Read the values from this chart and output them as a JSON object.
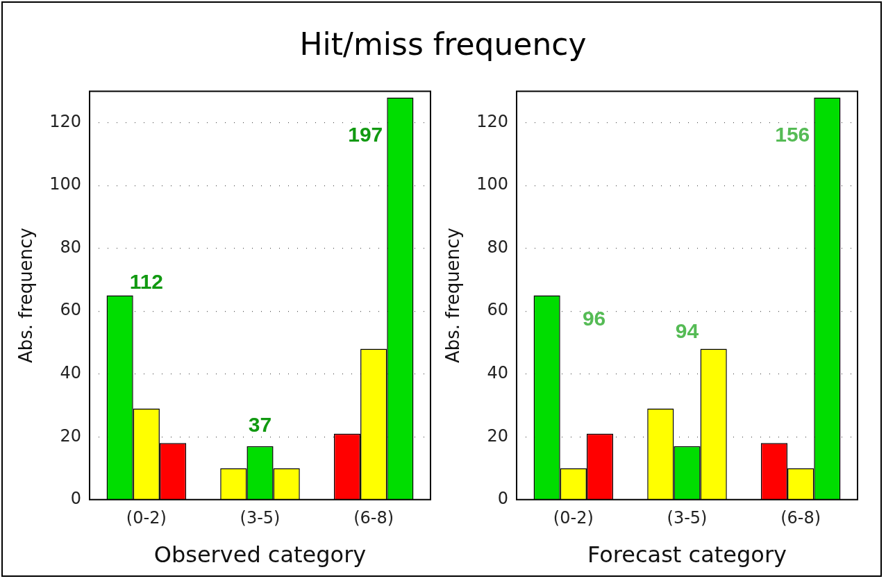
{
  "chart_data": [
    {
      "type": "bar",
      "title": "Hit/miss frequency",
      "xlabel": "Observed category",
      "ylabel": "Abs. frequency",
      "categories": [
        "(0-2)",
        "(3-5)",
        "(6-8)"
      ],
      "series": [
        {
          "colors": [
            "#00dd00",
            "#ffff00",
            "#ff0000"
          ],
          "values": [
            65,
            10,
            21
          ]
        },
        {
          "colors": [
            "#ffff00",
            "#00dd00",
            "#ffff00"
          ],
          "values": [
            29,
            17,
            48
          ]
        },
        {
          "colors": [
            "#ff0000",
            "#ffff00",
            "#00dd00"
          ],
          "values": [
            18,
            10,
            128
          ]
        }
      ],
      "ylim": [
        0,
        130
      ],
      "yticks": [
        0,
        20,
        40,
        60,
        80,
        100,
        120
      ],
      "grid": "y",
      "legend": false,
      "annotations": [
        "112",
        "37",
        "197"
      ]
    },
    {
      "type": "bar",
      "xlabel": "Forecast category",
      "ylabel": "Abs. frequency",
      "categories": [
        "(0-2)",
        "(3-5)",
        "(6-8)"
      ],
      "series": [
        {
          "colors": [
            "#00dd00",
            "#ffff00",
            "#ff0000"
          ],
          "values": [
            65,
            29,
            18
          ]
        },
        {
          "colors": [
            "#ffff00",
            "#00dd00",
            "#ffff00"
          ],
          "values": [
            10,
            17,
            10
          ]
        },
        {
          "colors": [
            "#ff0000",
            "#ffff00",
            "#00dd00"
          ],
          "values": [
            21,
            48,
            128
          ]
        }
      ],
      "ylim": [
        0,
        130
      ],
      "yticks": [
        0,
        20,
        40,
        60,
        80,
        100,
        120
      ],
      "grid": "y",
      "legend": false,
      "annotations": [
        "96",
        "94",
        "156"
      ]
    }
  ]
}
